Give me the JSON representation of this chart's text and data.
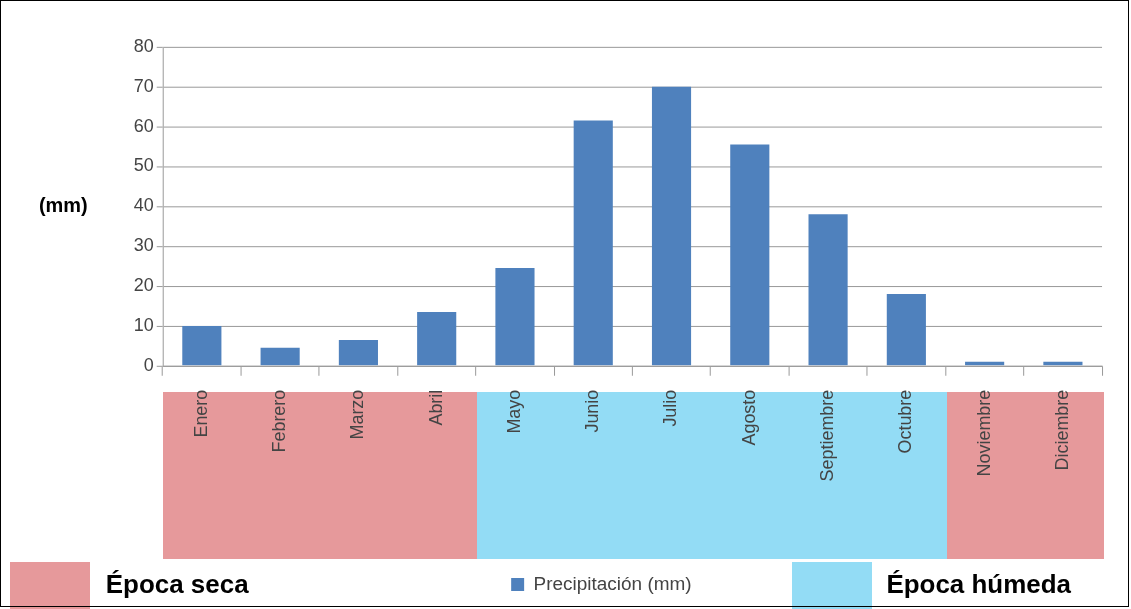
{
  "chart_data": {
    "type": "bar",
    "ylabel": "(mm)",
    "categories": [
      "Enero",
      "Febrero",
      "Marzo",
      "Abril",
      "Mayo",
      "Junio",
      "Julio",
      "Agosto",
      "Septiembre",
      "Octubre",
      "Noviembre",
      "Diciembre"
    ],
    "series": [
      {
        "name": "Precipitación (mm)",
        "color": "#4f81bd",
        "values": [
          10,
          4.5,
          6.5,
          13.5,
          24.5,
          61.5,
          70,
          55.5,
          38,
          18,
          1,
          1
        ]
      }
    ],
    "ylim": [
      0,
      80
    ],
    "yticks": [
      0,
      10,
      20,
      30,
      40,
      50,
      60,
      70,
      80
    ],
    "grid": "y",
    "legend": "bottom",
    "annotations": [
      "Época seca",
      "Época húmeda"
    ]
  }
}
